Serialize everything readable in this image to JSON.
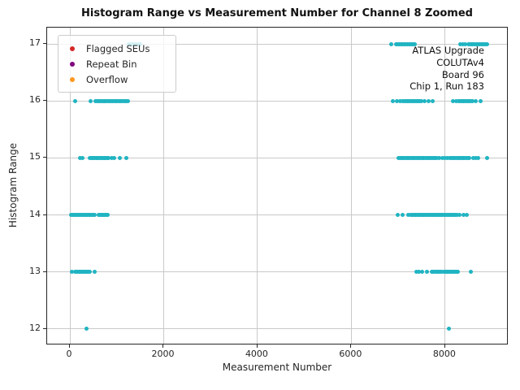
{
  "title": "Histogram Range vs Measurement Number for Channel 8 Zoomed",
  "legend": {
    "items": [
      {
        "label": "Flagged SEUs",
        "color": "#d62728"
      },
      {
        "label": "Repeat Bin",
        "color": "#800080"
      },
      {
        "label": "Overflow",
        "color": "#ff9820"
      }
    ]
  },
  "annotation": {
    "lines": [
      "ATLAS Upgrade",
      "COLUTAv4",
      "Board 96",
      "Chip 1, Run 183"
    ]
  },
  "chart_data": {
    "type": "scatter",
    "title": "Histogram Range vs Measurement Number for Channel 8 Zoomed",
    "xlabel": "Measurement Number",
    "ylabel": "Histogram Range",
    "xlim": [
      -485,
      9353
    ],
    "ylim": [
      11.715,
      17.285
    ],
    "xticks": [
      0,
      2000,
      4000,
      6000,
      8000
    ],
    "yticks": [
      12,
      13,
      14,
      15,
      16,
      17
    ],
    "grid": true,
    "legend_position": "upper left",
    "series": [
      {
        "name": "Flagged SEUs",
        "color": "#d62728",
        "singles": [],
        "runs": []
      },
      {
        "name": "Repeat Bin",
        "color": "#800080",
        "singles": [],
        "runs": []
      },
      {
        "name": "Overflow",
        "color": "#ff9820",
        "singles": [],
        "runs": []
      },
      {
        "name": "Histogram Range",
        "color": "#20b4c2",
        "singles": [
          [
            6850,
            17
          ],
          [
            8330,
            17
          ],
          [
            8380,
            17
          ],
          [
            8430,
            17
          ],
          [
            116,
            16
          ],
          [
            450,
            16
          ],
          [
            6890,
            16
          ],
          [
            6980,
            16
          ],
          [
            7040,
            16
          ],
          [
            7560,
            16
          ],
          [
            7650,
            16
          ],
          [
            7740,
            16
          ],
          [
            8170,
            16
          ],
          [
            8230,
            16
          ],
          [
            8660,
            16
          ],
          [
            8750,
            16
          ],
          [
            210,
            15
          ],
          [
            270,
            15
          ],
          [
            900,
            15
          ],
          [
            950,
            15
          ],
          [
            1070,
            15
          ],
          [
            1210,
            15
          ],
          [
            7880,
            15
          ],
          [
            7940,
            15
          ],
          [
            7990,
            15
          ],
          [
            8050,
            15
          ],
          [
            8600,
            15
          ],
          [
            8660,
            15
          ],
          [
            8700,
            15
          ],
          [
            8890,
            15
          ],
          [
            6990,
            14
          ],
          [
            7100,
            14
          ],
          [
            7220,
            14
          ],
          [
            7270,
            14
          ],
          [
            8310,
            14
          ],
          [
            8400,
            14
          ],
          [
            8460,
            14
          ],
          [
            50,
            13
          ],
          [
            520,
            13
          ],
          [
            7390,
            13
          ],
          [
            7440,
            13
          ],
          [
            7500,
            13
          ],
          [
            7620,
            13
          ],
          [
            8540,
            13
          ],
          [
            360,
            12
          ],
          [
            8080,
            12
          ]
        ],
        "runs": [
          {
            "y": 17,
            "from": 1260,
            "to": 1500,
            "step": 40
          },
          {
            "y": 17,
            "from": 6950,
            "to": 7360,
            "step": 25
          },
          {
            "y": 17,
            "from": 8490,
            "to": 8890,
            "step": 25
          },
          {
            "y": 16,
            "from": 550,
            "to": 1240,
            "step": 30
          },
          {
            "y": 16,
            "from": 7100,
            "to": 7500,
            "step": 30
          },
          {
            "y": 16,
            "from": 8280,
            "to": 8600,
            "step": 30
          },
          {
            "y": 15,
            "from": 430,
            "to": 840,
            "step": 25
          },
          {
            "y": 15,
            "from": 7010,
            "to": 7820,
            "step": 30
          },
          {
            "y": 15,
            "from": 8100,
            "to": 8540,
            "step": 30
          },
          {
            "y": 14,
            "from": 30,
            "to": 550,
            "step": 25
          },
          {
            "y": 14,
            "from": 610,
            "to": 810,
            "step": 25
          },
          {
            "y": 14,
            "from": 7300,
            "to": 8260,
            "step": 25
          },
          {
            "y": 13,
            "from": 120,
            "to": 430,
            "step": 25
          },
          {
            "y": 13,
            "from": 7710,
            "to": 7940,
            "step": 30
          },
          {
            "y": 13,
            "from": 7970,
            "to": 8280,
            "step": 25
          }
        ]
      }
    ]
  }
}
